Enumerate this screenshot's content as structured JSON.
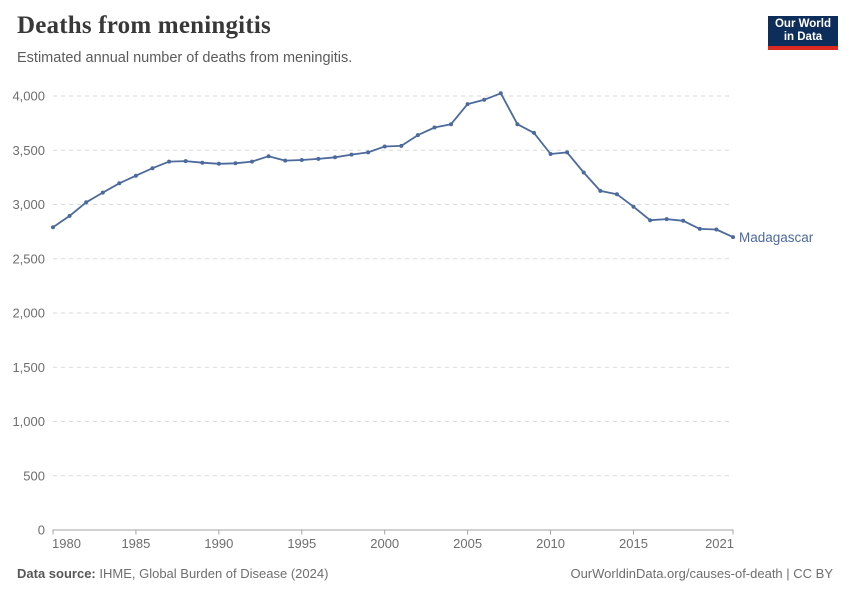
{
  "header": {
    "title": "Deaths from meningitis",
    "subtitle": "Estimated annual number of deaths from meningitis.",
    "logo": {
      "line1": "Our World",
      "line2": "in Data",
      "bg_color": "#0d2e5b",
      "accent_color": "#dc2a20"
    }
  },
  "chart_data": {
    "type": "line",
    "title": "Deaths from meningitis",
    "subtitle": "Estimated annual number of deaths from meningitis.",
    "xlabel": "",
    "ylabel": "",
    "xlim": [
      1980,
      2021
    ],
    "ylim": [
      0,
      4000
    ],
    "x_ticks": [
      1980,
      1985,
      1990,
      1995,
      2000,
      2005,
      2010,
      2015,
      2021
    ],
    "y_ticks": [
      0,
      500,
      1000,
      1500,
      2000,
      2500,
      3000,
      3500,
      4000
    ],
    "grid": "horizontal-dashed",
    "legend_position": "end-of-line",
    "grid_color": "#dadada",
    "axis_color": "#a3a3a3",
    "tick_label_color": "#6e6e6e",
    "series": [
      {
        "name": "Madagascar",
        "color": "#4c6a9c",
        "x": [
          1980,
          1981,
          1982,
          1983,
          1984,
          1985,
          1986,
          1987,
          1988,
          1989,
          1990,
          1991,
          1992,
          1993,
          1994,
          1995,
          1996,
          1997,
          1998,
          1999,
          2000,
          2001,
          2002,
          2003,
          2004,
          2005,
          2006,
          2007,
          2008,
          2009,
          2010,
          2011,
          2012,
          2013,
          2014,
          2015,
          2016,
          2017,
          2018,
          2019,
          2020,
          2021
        ],
        "values": [
          2790,
          2895,
          3020,
          3110,
          3195,
          3265,
          3335,
          3395,
          3400,
          3385,
          3375,
          3380,
          3395,
          3445,
          3405,
          3410,
          3420,
          3435,
          3460,
          3480,
          3535,
          3540,
          3640,
          3710,
          3740,
          3925,
          3965,
          4025,
          3740,
          3660,
          3465,
          3480,
          3295,
          3125,
          3095,
          2980,
          2855,
          2865,
          2850,
          2775,
          2770,
          2700
        ]
      }
    ]
  },
  "footer": {
    "source_label": "Data source:",
    "source_text": " IHME, Global Burden of Disease (2024)",
    "credit": "OurWorldinData.org/causes-of-death | CC BY"
  }
}
